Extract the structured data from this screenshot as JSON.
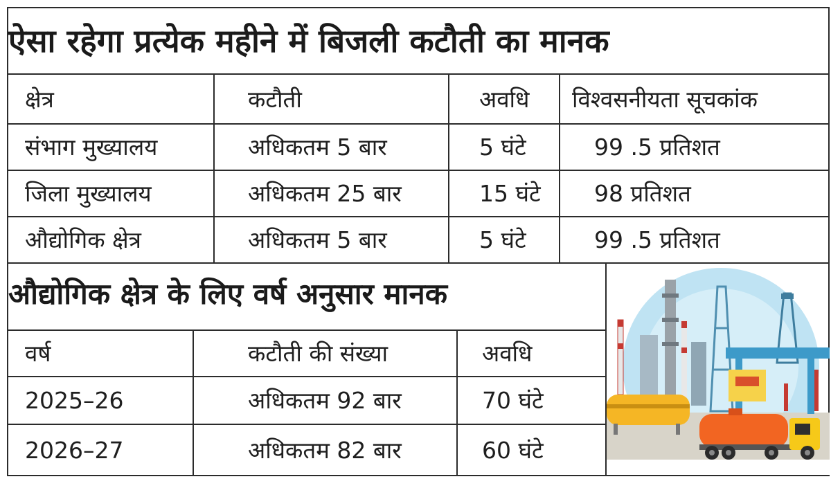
{
  "table1": {
    "title": "ऐसा रहेगा प्रत्येक महीने में बिजली कटौती का मानक",
    "headers": [
      "क्षेत्र",
      "कटौती",
      "अवधि",
      "विश्वसनीयता सूचकांक"
    ],
    "rows": [
      [
        "संभाग मुख्यालय",
        "अधिकतम 5 बार",
        "5 घंटे",
        "99 .5 प्रतिशत"
      ],
      [
        "जिला मुख्यालय",
        "अधिकतम 25 बार",
        "15 घंटे",
        "98 प्रतिशत"
      ],
      [
        "औद्योगिक क्षेत्र",
        "अधिकतम 5 बार",
        "5 घंटे",
        "99 .5 प्रतिशत"
      ]
    ]
  },
  "table2": {
    "title": "औद्योगिक क्षेत्र के लिए वर्ष अनुसार मानक",
    "headers": [
      "वर्ष",
      "कटौती की संख्या",
      "अवधि"
    ],
    "rows": [
      [
        "2025–26",
        "अधिकतम 92 बार",
        "70 घंटे"
      ],
      [
        "2026–27",
        "अधिकतम 82 बार",
        "60 घंटे"
      ]
    ]
  },
  "illustration": {
    "icon": "industrial-plant-tanker-illustration",
    "colors": {
      "sky": "#bfe3f3",
      "tank": "#f5b625",
      "tanker": "#f26522",
      "truck": "#f6c919",
      "ground": "#d8d4c9"
    }
  }
}
